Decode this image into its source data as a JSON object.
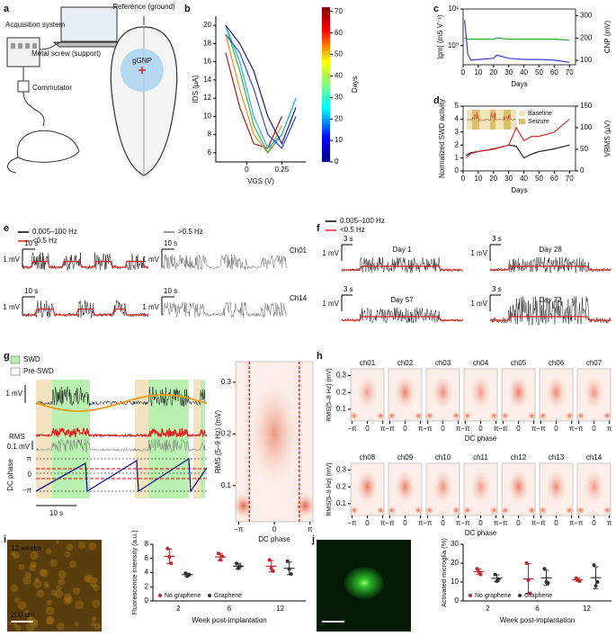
{
  "panel_letters": [
    "a",
    "b",
    "c",
    "d",
    "e",
    "f",
    "g",
    "h",
    "i",
    "j"
  ],
  "a": {
    "acquisition": "Acquisition system",
    "commutator": "Commutator",
    "reference": "Reference (ground)",
    "screw": "Metal screw (support)",
    "implant": "gGNP"
  },
  "e": {
    "legend": [
      "0.005–100 Hz",
      "<0.5 Hz",
      ">0.5 Hz"
    ],
    "time_bar": "10 s",
    "volt_bar": "1 mV",
    "channels": [
      "Ch01",
      "Ch14"
    ]
  },
  "f": {
    "legend": [
      "0.005–100 Hz",
      "<0.5 Hz"
    ],
    "time_bar": "3 s",
    "volt_bar": "1 mV",
    "days": [
      "Day 1",
      "Day 28",
      "Day 57",
      "Day 72"
    ]
  },
  "g": {
    "legend": [
      "SWD",
      "Pre-SWD"
    ],
    "volt_bar": "1 mV",
    "rms": "RMS",
    "rms_bar": "0.1 mV",
    "phase_label": "DC phase",
    "phase_ticks": [
      {
        "value": 3.1416,
        "label": "π"
      },
      0,
      {
        "value": -3.1416,
        "label": "−π"
      }
    ],
    "time_bar": "10 s"
  },
  "chart_data": [
    {
      "type": "line",
      "xlabel": "VGS (V)",
      "ylabel": "IDS (µA)",
      "xlim": [
        -0.22,
        0.42
      ],
      "xticks": [
        0,
        0.25
      ],
      "ylim": [
        5,
        21
      ],
      "yticks": [
        6,
        8,
        10,
        12,
        14,
        16,
        18,
        20
      ],
      "x": [
        -0.15,
        -0.05,
        0.05,
        0.15,
        0.25,
        0.35
      ],
      "series": [
        {
          "color": "#9e1a1a",
          "values": [
            17,
            11,
            7,
            6.5,
            10,
            null
          ]
        },
        {
          "color": "#f28a1c",
          "values": [
            19,
            13,
            8,
            6,
            9,
            null
          ]
        },
        {
          "color": "#3cb44b",
          "values": [
            20,
            15,
            9,
            6,
            8,
            12
          ]
        },
        {
          "color": "#1fb5d6",
          "values": [
            20,
            16,
            10,
            6.5,
            8,
            12
          ]
        },
        {
          "color": "#2a4ad0",
          "values": [
            19,
            17,
            13,
            8,
            6.5,
            10
          ]
        },
        {
          "color": "#1a1a7a",
          "values": [
            20,
            18,
            15,
            10,
            7,
            11
          ]
        }
      ],
      "colorbar": {
        "label": "Days",
        "lim": [
          0,
          72
        ],
        "ticks": [
          0,
          10,
          20,
          30,
          40,
          50,
          60,
          70
        ]
      }
    },
    {
      "type": "line",
      "xlabel": "Days",
      "ylabel": "|gm| (mS V⁻¹)",
      "y2label": "CNP (mV)",
      "log_y": true,
      "xlim": [
        0,
        74
      ],
      "xticks": [
        0,
        10,
        20,
        30,
        40,
        50,
        60,
        70
      ],
      "ylim": [
        0.3,
        10
      ],
      "yticks": [
        {
          "value": 1,
          "label": "10⁰"
        },
        {
          "value": 10,
          "label": "10¹"
        }
      ],
      "y2lim": [
        80,
        330
      ],
      "y2ticks": [
        100,
        200,
        300
      ],
      "x": [
        1,
        3,
        5,
        10,
        20,
        22,
        30,
        40,
        50,
        60,
        70
      ],
      "series": [
        {
          "color": "#3a3ad6",
          "values": [
            5,
            0.6,
            0.4,
            0.42,
            0.45,
            0.55,
            0.45,
            0.42,
            0.42,
            0.4,
            0.35
          ]
        },
        {
          "color": "#2e9e3e",
          "axis": "y2",
          "values": [
            200,
            195,
            195,
            195,
            195,
            200,
            195,
            195,
            195,
            195,
            190
          ]
        }
      ]
    },
    {
      "type": "line",
      "xlabel": "Days",
      "ylabel": "Normalized SWD activity",
      "y2label": "VRMS (µV)",
      "xlim": [
        0,
        74
      ],
      "xticks": [
        0,
        10,
        20,
        30,
        40,
        50,
        60,
        70
      ],
      "ylim": [
        0,
        5
      ],
      "yticks": [
        0,
        1,
        2,
        3,
        4,
        5
      ],
      "y2lim": [
        0,
        150
      ],
      "y2ticks": [
        0,
        50,
        100,
        150
      ],
      "legend": [
        "Baseline",
        "Seizure"
      ],
      "x": [
        2,
        5,
        10,
        20,
        30,
        35,
        40,
        45,
        50,
        60,
        70
      ],
      "series": [
        {
          "color": "#222222",
          "values": [
            1.2,
            1.4,
            1.5,
            1.7,
            2.0,
            1.9,
            1.0,
            1.3,
            1.5,
            1.7,
            2.0
          ]
        },
        {
          "color": "#d9302c",
          "axis": "y2",
          "values": [
            30,
            40,
            45,
            50,
            60,
            100,
            70,
            80,
            80,
            90,
            120
          ]
        }
      ]
    },
    {
      "type": "heatmap",
      "ylabel": "RMS (5–9 Hz) (mV)",
      "xlabel": "DC phase",
      "xlim": [
        -3.4,
        3.4
      ],
      "xticks": [
        {
          "value": -3.1416,
          "label": "−π"
        },
        0,
        {
          "value": 3.1416,
          "label": "π"
        }
      ],
      "ylim": [
        0.03,
        0.34
      ],
      "yticks": [
        0.1,
        0.2,
        0.3
      ]
    },
    {
      "type": "heatmap",
      "panels": [
        "ch01",
        "ch02",
        "ch03",
        "ch04",
        "ch05",
        "ch06",
        "ch07",
        "ch08",
        "ch09",
        "ch10",
        "ch11",
        "ch12",
        "ch13",
        "ch14"
      ],
      "ylabel": "RMS(5–9 Hz) (mV)",
      "xlabel": "DC phase",
      "xlim": [
        -3.4,
        3.4
      ],
      "xticks": [
        {
          "value": -3.1416,
          "label": "−π"
        },
        0,
        {
          "value": 3.1416,
          "label": "π"
        }
      ],
      "ylim": [
        0.03,
        0.34
      ],
      "yticks": [
        0.1,
        0.2,
        0.3
      ]
    },
    {
      "type": "dot",
      "image_caption": "12 weeks",
      "scale_bar": "200 µm",
      "ylabel": "Fluorescence intensity (a.u.)",
      "xlabel": "Week post-implantation",
      "categories": [
        "2",
        "6",
        "12"
      ],
      "ylim": [
        0,
        8
      ],
      "yticks": [
        0,
        2,
        4,
        6,
        8
      ],
      "series": [
        {
          "name": "No graphene",
          "color": "#c1272d",
          "values": [
            [
              7.4,
              6.2,
              5.3
            ],
            [
              6.7,
              5.8,
              6.3
            ],
            [
              5.8,
              4.6,
              4.2
            ]
          ],
          "mean": [
            6.3,
            6.2,
            4.9
          ],
          "sd": [
            1.0,
            0.5,
            0.8
          ]
        },
        {
          "name": "Graphene",
          "color": "#333333",
          "values": [
            [
              3.9,
              3.5,
              3.7
            ],
            [
              5.3,
              4.6,
              4.9
            ],
            [
              5.6,
              4.5,
              3.8
            ]
          ],
          "mean": [
            3.7,
            4.9,
            4.6
          ],
          "sd": [
            0.2,
            0.4,
            0.9
          ]
        }
      ]
    },
    {
      "type": "dot",
      "scale_bar": "20 µm",
      "ylabel": "Activated microglia (%)",
      "xlabel": "Week post-implantation",
      "categories": [
        "2",
        "6",
        "12"
      ],
      "ylim": [
        0,
        30
      ],
      "yticks": [
        0,
        10,
        20,
        30
      ],
      "series": [
        {
          "name": "No graphene",
          "color": "#c1272d",
          "values": [
            [
              17,
              15.5,
              14
            ],
            [
              20,
              11,
              4
            ],
            [
              12,
              11,
              10.5
            ]
          ],
          "mean": [
            15.5,
            11.7,
            11.2
          ],
          "sd": [
            1.5,
            8,
            0.8
          ]
        },
        {
          "name": "Graphene",
          "color": "#333333",
          "values": [
            [
              14,
              10.5,
              11.5
            ],
            [
              17,
              10,
              9.5
            ],
            [
              19,
              8,
              10
            ]
          ],
          "mean": [
            12,
            12.2,
            12.3
          ],
          "sd": [
            1.8,
            4,
            5.8
          ]
        }
      ]
    }
  ]
}
